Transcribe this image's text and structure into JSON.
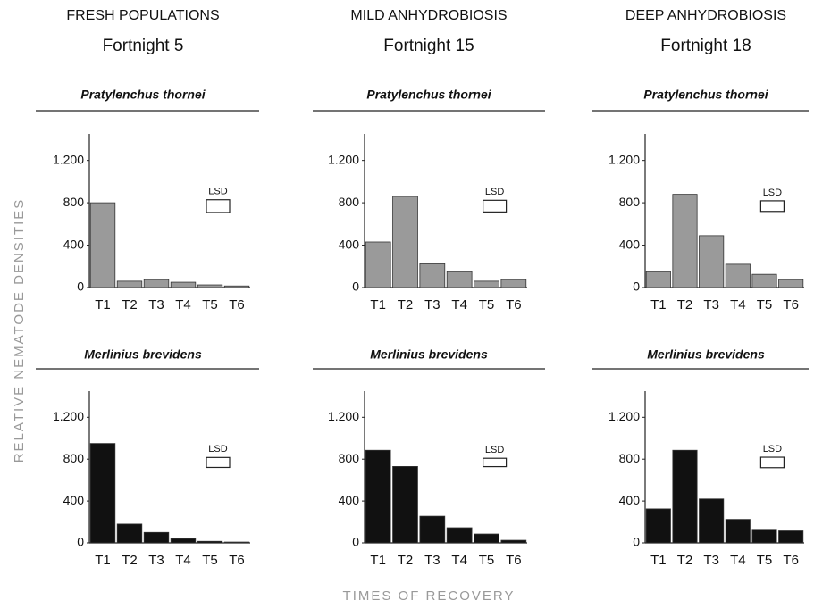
{
  "columns": [
    {
      "heading": "FRESH POPULATIONS",
      "subheading": "Fortnight 5"
    },
    {
      "heading": "MILD ANHYDROBIOSIS",
      "subheading": "Fortnight 15"
    },
    {
      "heading": "DEEP ANHYDROBIOSIS",
      "subheading": "Fortnight 18"
    }
  ],
  "ylabel": "RELATIVE NEMATODE DENSITIES",
  "xlabel": "TIMES OF RECOVERY",
  "chart_data": [
    {
      "type": "bar",
      "title": "Pratylenchus thornei",
      "categories": [
        "T1",
        "T2",
        "T3",
        "T4",
        "T5",
        "T6"
      ],
      "values": [
        800,
        60,
        75,
        50,
        25,
        15
      ],
      "color": "#9a9a9a",
      "ylim": [
        0,
        1450
      ],
      "yticks": [
        0,
        400,
        800,
        {
          "value": 1200,
          "label": "1.200"
        }
      ],
      "lsd": {
        "label": "LSD",
        "value": 120
      }
    },
    {
      "type": "bar",
      "title": "Pratylenchus thornei",
      "categories": [
        "T1",
        "T2",
        "T3",
        "T4",
        "T5",
        "T6"
      ],
      "values": [
        430,
        860,
        225,
        150,
        60,
        75
      ],
      "color": "#9a9a9a",
      "ylim": [
        0,
        1450
      ],
      "yticks": [
        0,
        400,
        800,
        {
          "value": 1200,
          "label": "1.200"
        }
      ],
      "lsd": {
        "label": "LSD",
        "value": 110
      }
    },
    {
      "type": "bar",
      "title": "Pratylenchus thornei",
      "categories": [
        "T1",
        "T2",
        "T3",
        "T4",
        "T5",
        "T6"
      ],
      "values": [
        150,
        880,
        490,
        220,
        125,
        75
      ],
      "color": "#9a9a9a",
      "ylim": [
        0,
        1450
      ],
      "yticks": [
        0,
        400,
        800,
        {
          "value": 1200,
          "label": "1.200"
        }
      ],
      "lsd": {
        "label": "LSD",
        "value": 100
      }
    },
    {
      "type": "bar",
      "title": "Merlinius brevidens",
      "categories": [
        "T1",
        "T2",
        "T3",
        "T4",
        "T5",
        "T6"
      ],
      "values": [
        950,
        180,
        100,
        40,
        15,
        8
      ],
      "color": "#111111",
      "ylim": [
        0,
        1450
      ],
      "yticks": [
        0,
        400,
        800,
        {
          "value": 1200,
          "label": "1.200"
        }
      ],
      "lsd": {
        "label": "LSD",
        "value": 95
      }
    },
    {
      "type": "bar",
      "title": "Merlinius brevidens",
      "categories": [
        "T1",
        "T2",
        "T3",
        "T4",
        "T5",
        "T6"
      ],
      "values": [
        885,
        730,
        255,
        145,
        85,
        25
      ],
      "color": "#111111",
      "ylim": [
        0,
        1450
      ],
      "yticks": [
        0,
        400,
        800,
        {
          "value": 1200,
          "label": "1.200"
        }
      ],
      "lsd": {
        "label": "LSD",
        "value": 80
      }
    },
    {
      "type": "bar",
      "title": "Merlinius brevidens",
      "categories": [
        "T1",
        "T2",
        "T3",
        "T4",
        "T5",
        "T6"
      ],
      "values": [
        325,
        885,
        420,
        225,
        130,
        115
      ],
      "color": "#111111",
      "ylim": [
        0,
        1450
      ],
      "yticks": [
        0,
        400,
        800,
        {
          "value": 1200,
          "label": "1.200"
        }
      ],
      "lsd": {
        "label": "LSD",
        "value": 100
      }
    }
  ]
}
